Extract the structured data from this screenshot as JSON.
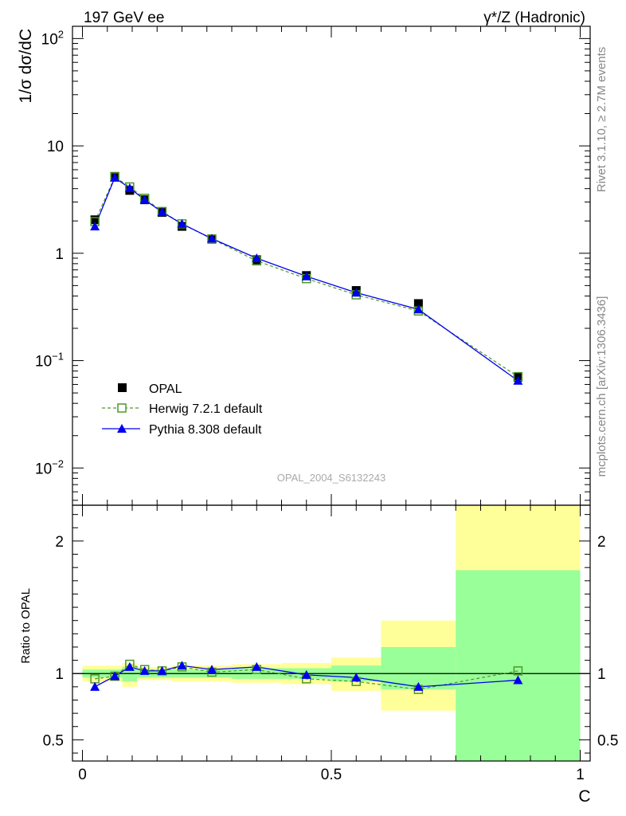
{
  "header": {
    "left": "197 GeV ee",
    "right": "γ*/Z (Hadronic)"
  },
  "side_labels": {
    "rivet": "Rivet 3.1.10, ≥ 2.7M events",
    "mcplots": "mcplots.cern.ch [arXiv:1306.3436]"
  },
  "analysis_id": "OPAL_2004_S6132243",
  "colors": {
    "opal": "#000000",
    "herwig": "#4c9a2a",
    "pythia": "#0000ee",
    "band_yellow": "#ffff99",
    "band_green": "#99ff99"
  },
  "chart_data": [
    {
      "type": "line",
      "panel": "main",
      "ylabel": "1/σ dσ/dC",
      "yscale": "log",
      "ylim": [
        0.0045,
        130
      ],
      "xlim": [
        -0.02,
        1.02
      ],
      "yticks": [
        {
          "value": 0.01,
          "base": "10",
          "exp": "−2"
        },
        {
          "value": 0.1,
          "base": "10",
          "exp": "−1"
        },
        {
          "value": 1,
          "base": "1",
          "exp": ""
        },
        {
          "value": 10,
          "base": "10",
          "exp": ""
        },
        {
          "value": 100,
          "base": "10",
          "exp": "2"
        }
      ],
      "legend_placement": "lower-left",
      "series": [
        {
          "name": "OPAL",
          "style": "square-filled",
          "x": [
            0.025,
            0.065,
            0.095,
            0.125,
            0.16,
            0.2,
            0.26,
            0.35,
            0.45,
            0.55,
            0.675,
            0.875
          ],
          "y": [
            2.05,
            5.2,
            3.85,
            3.15,
            2.4,
            1.78,
            1.35,
            0.87,
            0.62,
            0.45,
            0.34,
            0.07
          ]
        },
        {
          "name": "Herwig 7.2.1 default",
          "style": "square-open-dashed",
          "x": [
            0.025,
            0.065,
            0.095,
            0.125,
            0.16,
            0.2,
            0.26,
            0.35,
            0.45,
            0.55,
            0.675,
            0.875
          ],
          "y": [
            1.97,
            5.15,
            4.15,
            3.25,
            2.45,
            1.88,
            1.36,
            0.85,
            0.58,
            0.41,
            0.29,
            0.071
          ]
        },
        {
          "name": "Pythia 8.308 default",
          "style": "triangle-solid",
          "x": [
            0.025,
            0.065,
            0.095,
            0.125,
            0.16,
            0.2,
            0.26,
            0.35,
            0.45,
            0.55,
            0.675,
            0.875
          ],
          "y": [
            1.78,
            5.05,
            4.05,
            3.15,
            2.42,
            1.88,
            1.37,
            0.9,
            0.61,
            0.43,
            0.3,
            0.065
          ]
        }
      ]
    },
    {
      "type": "line",
      "panel": "ratio",
      "ylabel": "Ratio to OPAL",
      "xlabel": "C",
      "ylim": [
        0.34,
        2.27
      ],
      "xlim": [
        -0.02,
        1.02
      ],
      "xticks": [
        {
          "value": 0,
          "label": "0"
        },
        {
          "value": 0.5,
          "label": "0.5"
        },
        {
          "value": 1,
          "label": "1"
        }
      ],
      "yticks": [
        {
          "value": 0.5,
          "label": "0.5"
        },
        {
          "value": 1,
          "label": "1"
        },
        {
          "value": 2,
          "label": "2"
        }
      ],
      "bands": [
        {
          "x0": 0.0,
          "x1": 0.08,
          "yellow": [
            0.94,
            1.06
          ],
          "green": [
            0.97,
            1.03
          ]
        },
        {
          "x0": 0.08,
          "x1": 0.08,
          "yellow": [
            0.94,
            1.06
          ],
          "green": [
            0.96,
            1.04
          ]
        },
        {
          "x0": 0.08,
          "x1": 0.11,
          "yellow": [
            0.9,
            1.08
          ],
          "green": [
            0.94,
            1.05
          ]
        },
        {
          "x0": 0.11,
          "x1": 0.14,
          "yellow": [
            0.95,
            1.05
          ],
          "green": [
            0.97,
            1.03
          ]
        },
        {
          "x0": 0.14,
          "x1": 0.18,
          "yellow": [
            0.95,
            1.05
          ],
          "green": [
            0.97,
            1.03
          ]
        },
        {
          "x0": 0.18,
          "x1": 0.22,
          "yellow": [
            0.94,
            1.06
          ],
          "green": [
            0.97,
            1.03
          ]
        },
        {
          "x0": 0.22,
          "x1": 0.3,
          "yellow": [
            0.94,
            1.06
          ],
          "green": [
            0.97,
            1.03
          ]
        },
        {
          "x0": 0.3,
          "x1": 0.4,
          "yellow": [
            0.93,
            1.07
          ],
          "green": [
            0.96,
            1.04
          ]
        },
        {
          "x0": 0.4,
          "x1": 0.5,
          "yellow": [
            0.92,
            1.08
          ],
          "green": [
            0.96,
            1.04
          ]
        },
        {
          "x0": 0.5,
          "x1": 0.6,
          "yellow": [
            0.87,
            1.12
          ],
          "green": [
            0.94,
            1.06
          ]
        },
        {
          "x0": 0.6,
          "x1": 0.75,
          "yellow": [
            0.72,
            1.4
          ],
          "green": [
            0.88,
            1.2
          ]
        },
        {
          "x0": 0.75,
          "x1": 1.0,
          "yellow": [
            0.34,
            2.27
          ],
          "green": [
            0.34,
            1.78
          ]
        }
      ],
      "series": [
        {
          "name": "Herwig 7.2.1 default",
          "x": [
            0.025,
            0.065,
            0.095,
            0.125,
            0.16,
            0.2,
            0.26,
            0.35,
            0.45,
            0.55,
            0.675,
            0.875
          ],
          "y": [
            0.96,
            0.98,
            1.07,
            1.03,
            1.02,
            1.05,
            1.01,
            1.03,
            0.96,
            0.94,
            0.88,
            1.02
          ]
        },
        {
          "name": "Pythia 8.308 default",
          "x": [
            0.025,
            0.065,
            0.095,
            0.125,
            0.16,
            0.2,
            0.26,
            0.35,
            0.45,
            0.55,
            0.675,
            0.875
          ],
          "y": [
            0.9,
            0.98,
            1.05,
            1.02,
            1.02,
            1.06,
            1.03,
            1.05,
            0.99,
            0.97,
            0.9,
            0.95
          ]
        }
      ]
    }
  ]
}
